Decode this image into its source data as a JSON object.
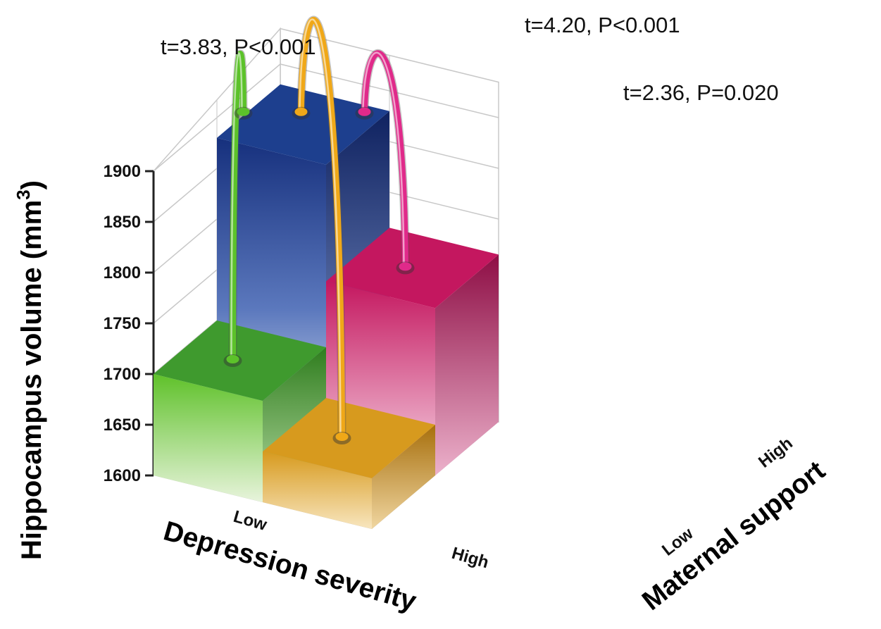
{
  "chart_data": {
    "type": "bar",
    "subtype": "3d-bar",
    "title": "",
    "ylabel": "Hippocampus volume (mm³)",
    "ylabel_parts": [
      "Hippocampus volume (mm",
      "3",
      ")"
    ],
    "xlabel": "Depression severity",
    "zlabel": "Maternal support",
    "ylim": [
      1600,
      1900
    ],
    "yticks": [
      "1900",
      "1850",
      "1800",
      "1750",
      "1700",
      "1650",
      "1600"
    ],
    "x_categories": [
      "Low",
      "High"
    ],
    "z_categories": [
      "Low",
      "High"
    ],
    "bars": [
      {
        "depression": "Low",
        "maternal_support": "Low",
        "value": 1700,
        "color": "#3f9a2e"
      },
      {
        "depression": "High",
        "maternal_support": "Low",
        "value": 1650,
        "color": "#d79a1e"
      },
      {
        "depression": "Low",
        "maternal_support": "High",
        "value": 1880,
        "color": "#1d3f8e"
      },
      {
        "depression": "High",
        "maternal_support": "High",
        "value": 1765,
        "color": "#c4175f"
      }
    ],
    "annotations": [
      {
        "text": "t=3.83, P<0.001",
        "from": "Low/Low",
        "to": "Low/High",
        "color": "#5cc22a"
      },
      {
        "text": "t=4.20, P<0.001",
        "from": "High/Low",
        "to": "Low/High",
        "color": "#f0a818"
      },
      {
        "text": "t=2.36, P=0.020",
        "from": "High/High",
        "to": "Low/High",
        "color": "#e02a8a"
      }
    ]
  }
}
